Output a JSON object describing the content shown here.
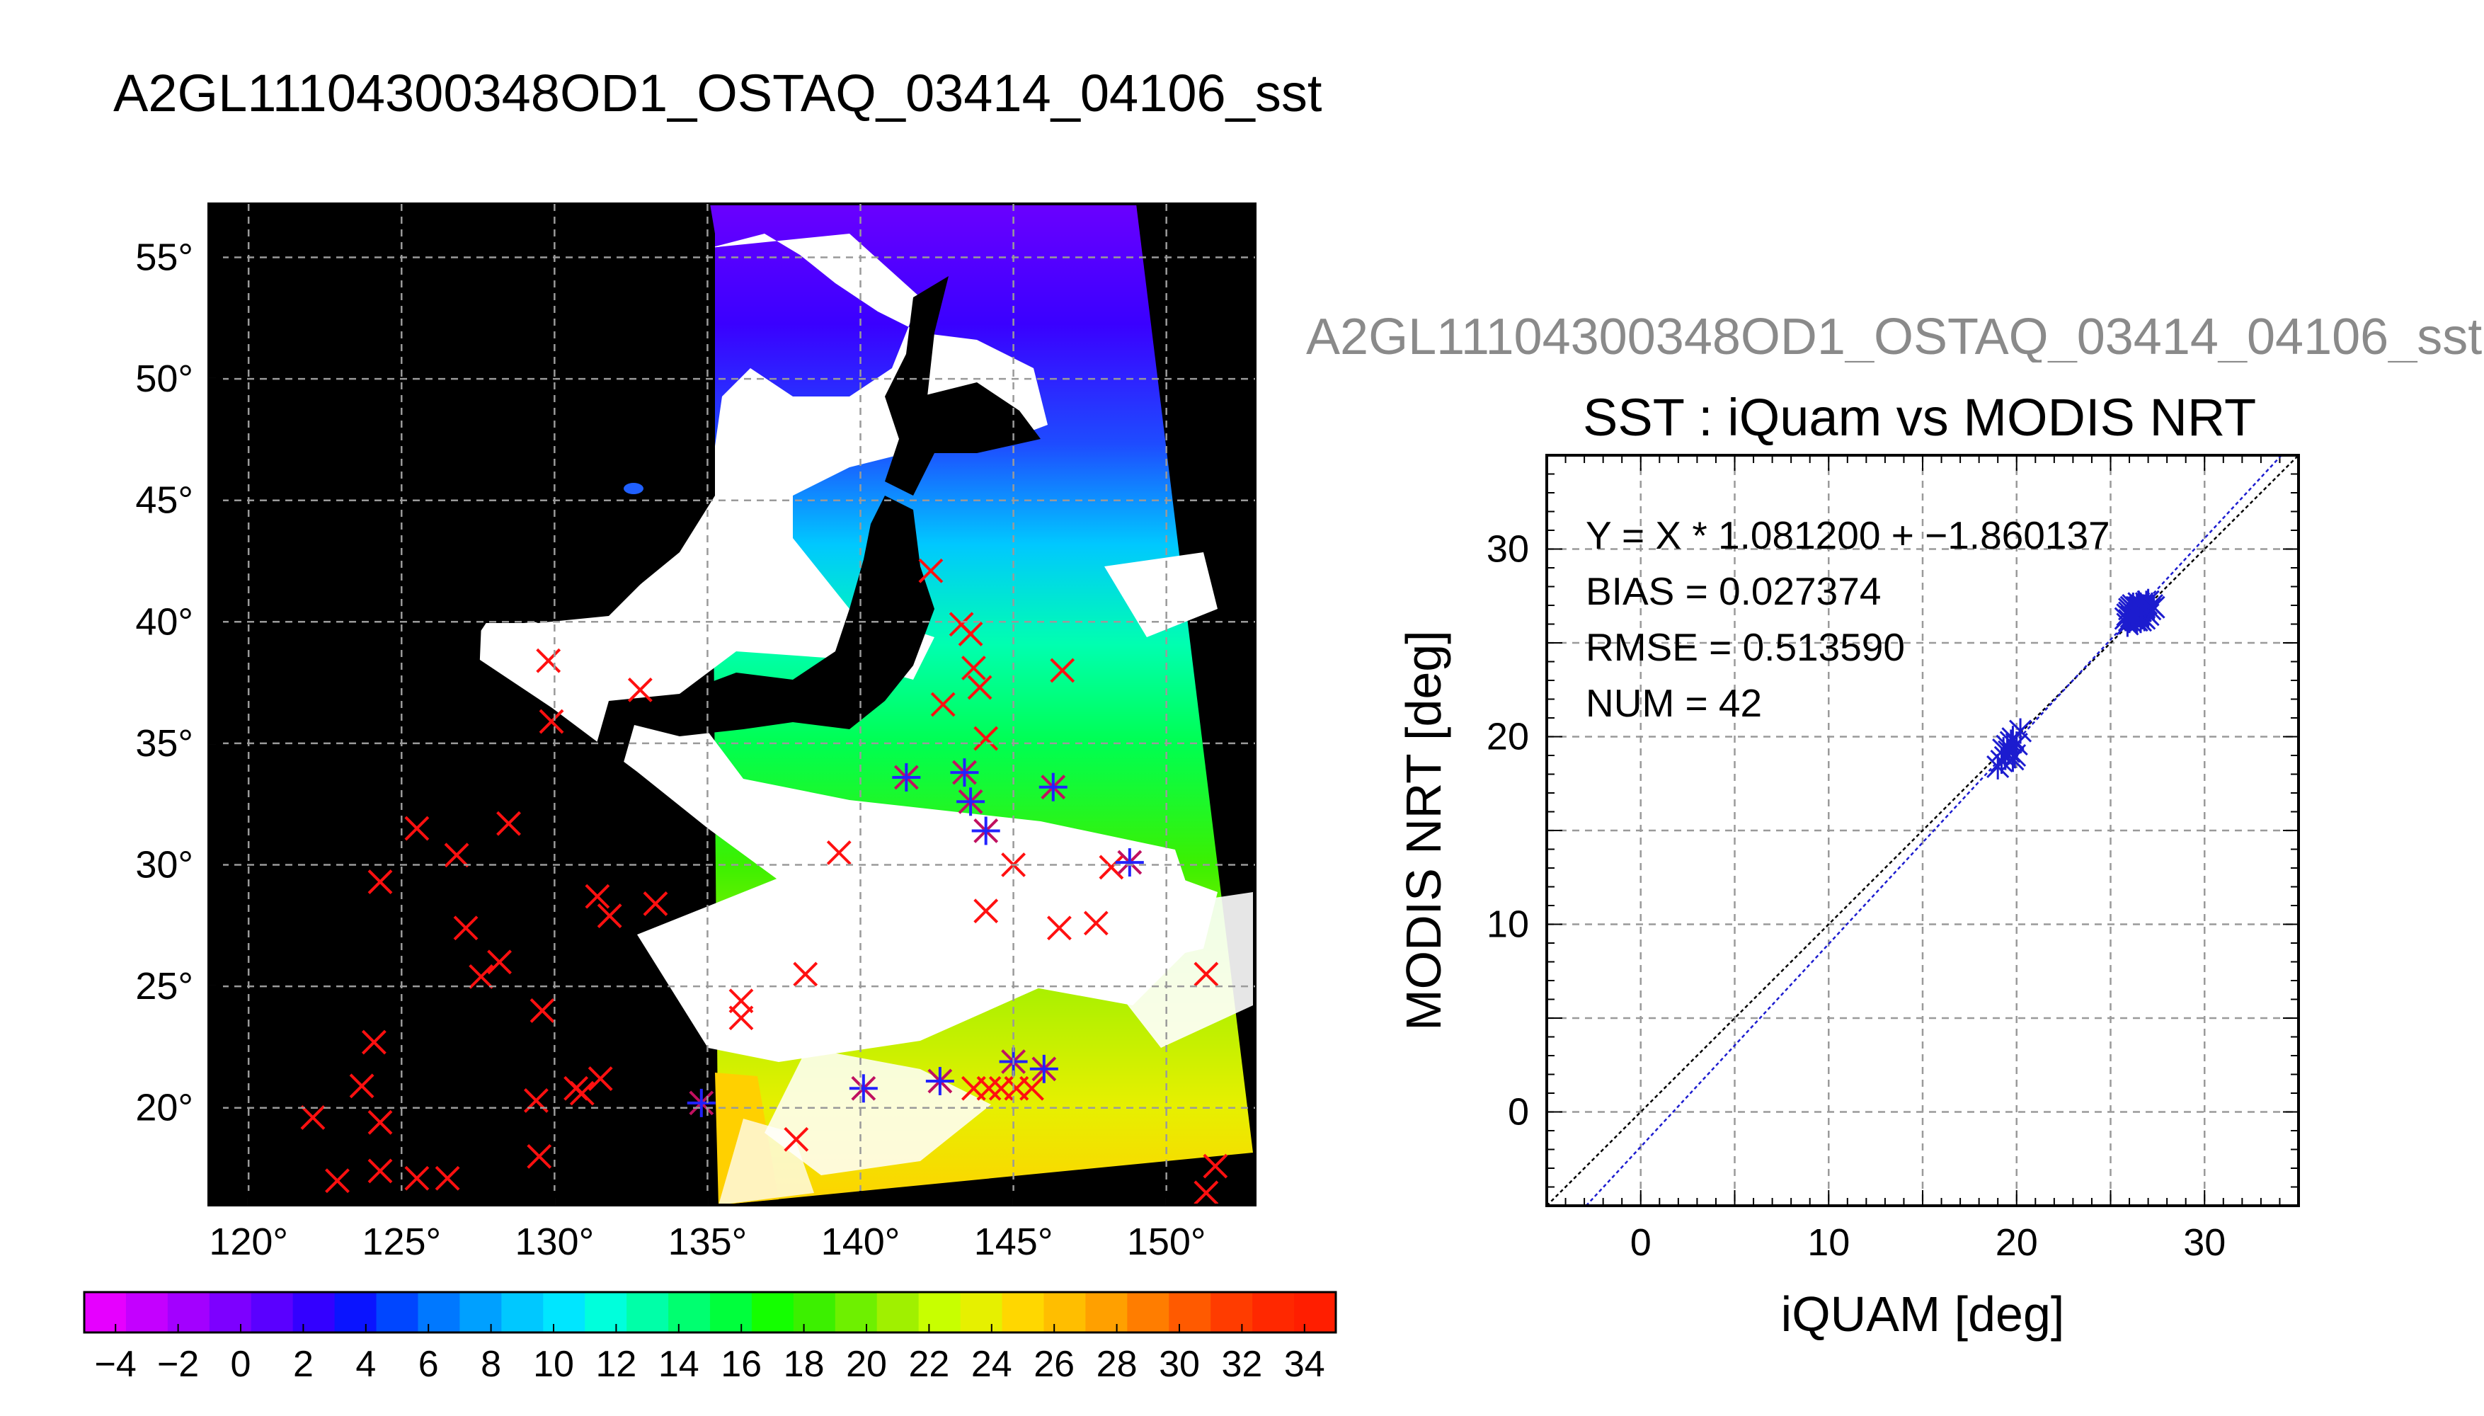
{
  "page_title": "A2GL11104300348OD1_OSTAQ_03414_04106_sst",
  "scatter_subtitle": "A2GL11104300348OD1_OSTAQ_03414_04106_sst",
  "chart_data": [
    {
      "type": "map",
      "title": "A2GL11104300348OD1_OSTAQ_03414_04106_sst",
      "x_ticks": [
        "120°",
        "125°",
        "130°",
        "135°",
        "140°",
        "145°",
        "150°"
      ],
      "y_ticks": [
        "55°",
        "50°",
        "45°",
        "40°",
        "35°",
        "30°",
        "25°",
        "20°"
      ],
      "xlim": [
        118.7,
        152.9
      ],
      "ylim": [
        16.0,
        57.2
      ],
      "background_color": "#000000",
      "cloud_color": "#ffffff",
      "grid": true,
      "red_markers": [
        [
          129.8,
          38.4
        ],
        [
          132.8,
          37.2
        ],
        [
          129.9,
          35.9
        ],
        [
          125.5,
          31.5
        ],
        [
          126.8,
          30.4
        ],
        [
          128.5,
          31.7
        ],
        [
          124.3,
          29.3
        ],
        [
          127.1,
          27.4
        ],
        [
          128.2,
          26.0
        ],
        [
          127.6,
          25.4
        ],
        [
          129.6,
          24.0
        ],
        [
          124.1,
          22.7
        ],
        [
          123.7,
          20.9
        ],
        [
          124.3,
          19.4
        ],
        [
          122.1,
          19.6
        ],
        [
          122.9,
          17.0
        ],
        [
          124.3,
          17.4
        ],
        [
          125.5,
          17.1
        ],
        [
          126.5,
          17.1
        ],
        [
          129.5,
          18.0
        ],
        [
          129.4,
          20.3
        ],
        [
          130.7,
          20.8
        ],
        [
          131.5,
          21.2
        ],
        [
          130.9,
          20.6
        ],
        [
          131.4,
          28.7
        ],
        [
          131.8,
          27.9
        ],
        [
          133.3,
          28.4
        ],
        [
          136.1,
          24.4
        ],
        [
          136.1,
          23.7
        ],
        [
          138.2,
          25.5
        ],
        [
          139.3,
          30.5
        ],
        [
          137.9,
          18.7
        ],
        [
          142.3,
          42.1
        ],
        [
          143.6,
          39.5
        ],
        [
          143.3,
          39.9
        ],
        [
          143.7,
          38.1
        ],
        [
          143.9,
          37.3
        ],
        [
          142.7,
          36.6
        ],
        [
          146.6,
          38.0
        ],
        [
          144.1,
          35.2
        ],
        [
          145.0,
          30.0
        ],
        [
          144.1,
          28.1
        ],
        [
          146.5,
          27.4
        ],
        [
          147.7,
          27.6
        ],
        [
          148.2,
          29.9
        ],
        [
          151.3,
          25.5
        ],
        [
          151.6,
          17.6
        ],
        [
          151.3,
          16.5
        ],
        [
          143.7,
          20.8
        ],
        [
          144.2,
          20.8
        ],
        [
          144.6,
          20.8
        ],
        [
          145.1,
          20.8
        ],
        [
          145.6,
          20.8
        ]
      ],
      "blue_markers": [
        [
          141.5,
          33.6
        ],
        [
          143.4,
          33.8
        ],
        [
          143.6,
          32.6
        ],
        [
          144.1,
          31.4
        ],
        [
          146.3,
          33.2
        ],
        [
          148.8,
          30.1
        ],
        [
          134.8,
          20.2
        ],
        [
          140.1,
          20.8
        ],
        [
          142.6,
          21.1
        ],
        [
          145.0,
          21.9
        ],
        [
          146.0,
          21.6
        ]
      ]
    },
    {
      "type": "scatter",
      "title": "SST : iQuam vs MODIS NRT",
      "xlabel": "iQUAM [deg]",
      "ylabel": "MODIS NRT [deg]",
      "xlim": [
        -5,
        35
      ],
      "ylim": [
        -5,
        35
      ],
      "x_ticks": [
        "0",
        "10",
        "20",
        "30"
      ],
      "y_ticks": [
        "0",
        "10",
        "20",
        "30"
      ],
      "grid": true,
      "stats": [
        "Y = X * 1.081200 + −1.860137",
        "BIAS = 0.027374",
        "RMSE = 0.513590",
        "NUM = 42"
      ],
      "fit": {
        "slope": 1.0812,
        "intercept": -1.860137,
        "color": "#1c1ccf"
      },
      "one_to_one_color": "#000000",
      "marker_color": "#1c1ccf",
      "points": [
        [
          19.0,
          18.4
        ],
        [
          19.2,
          18.7
        ],
        [
          19.4,
          18.9
        ],
        [
          19.5,
          19.5
        ],
        [
          19.6,
          19.2
        ],
        [
          19.7,
          19.7
        ],
        [
          19.8,
          18.8
        ],
        [
          19.9,
          19.0
        ],
        [
          20.0,
          19.6
        ],
        [
          20.2,
          20.3
        ],
        [
          19.3,
          19.3
        ],
        [
          19.8,
          19.9
        ],
        [
          25.8,
          26.3
        ],
        [
          25.9,
          26.5
        ],
        [
          26.0,
          26.8
        ],
        [
          26.1,
          26.4
        ],
        [
          26.2,
          26.6
        ],
        [
          26.3,
          26.3
        ],
        [
          26.4,
          26.9
        ],
        [
          26.5,
          26.5
        ],
        [
          26.6,
          26.7
        ],
        [
          26.7,
          26.4
        ],
        [
          26.8,
          26.9
        ],
        [
          26.9,
          26.6
        ],
        [
          27.0,
          27.2
        ],
        [
          27.1,
          26.8
        ],
        [
          26.0,
          26.2
        ],
        [
          26.2,
          27.0
        ],
        [
          26.4,
          26.2
        ],
        [
          26.6,
          27.0
        ],
        [
          26.8,
          26.3
        ],
        [
          27.0,
          26.5
        ],
        [
          27.2,
          27.0
        ],
        [
          26.1,
          26.9
        ],
        [
          26.3,
          26.7
        ],
        [
          26.5,
          27.1
        ],
        [
          26.7,
          26.8
        ],
        [
          26.9,
          27.1
        ],
        [
          25.9,
          26.0
        ],
        [
          27.3,
          26.9
        ],
        [
          26.0,
          26.6
        ],
        [
          26.6,
          26.2
        ]
      ]
    },
    {
      "type": "colorbar",
      "min": -5,
      "max": 35,
      "tick_labels": [
        "−4",
        "−2",
        "0",
        "2",
        "4",
        "6",
        "8",
        "10",
        "12",
        "14",
        "16",
        "18",
        "20",
        "22",
        "24",
        "26",
        "28",
        "30",
        "32",
        "34"
      ],
      "colors": [
        "#e600ff",
        "#c400ff",
        "#a300ff",
        "#7d00ff",
        "#5a00ff",
        "#3300ff",
        "#0a14ff",
        "#0046ff",
        "#0078ff",
        "#00a0ff",
        "#00c8ff",
        "#00e6ff",
        "#00ffdc",
        "#00ffa8",
        "#00ff70",
        "#00ff3c",
        "#14ff00",
        "#3cf000",
        "#6ef000",
        "#a0f000",
        "#c8ff00",
        "#e6f000",
        "#ffd700",
        "#ffbe00",
        "#ffa000",
        "#ff7d00",
        "#ff5a00",
        "#ff3c00",
        "#ff2800",
        "#ff1e00"
      ]
    }
  ]
}
